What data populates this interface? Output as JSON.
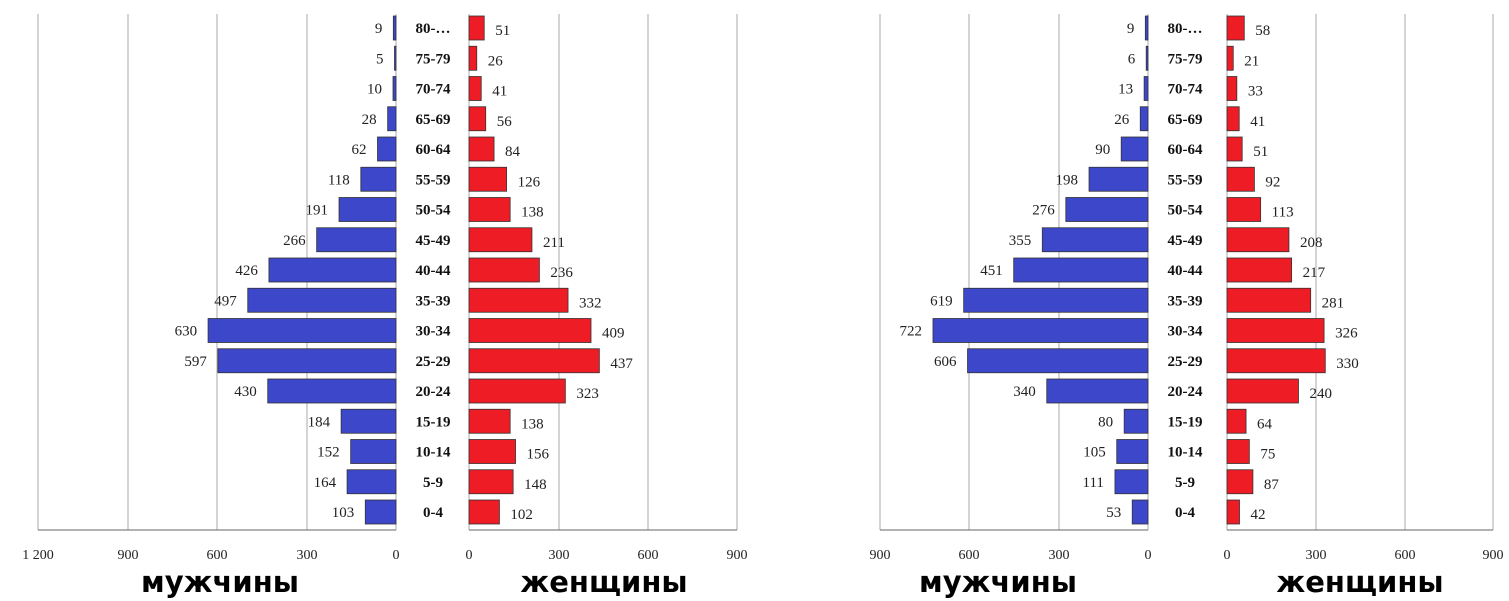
{
  "chart_data": [
    {
      "type": "bar",
      "categories": [
        "80-…",
        "75-79",
        "70-74",
        "65-69",
        "60-64",
        "55-59",
        "50-54",
        "45-49",
        "40-44",
        "35-39",
        "30-34",
        "25-29",
        "20-24",
        "15-19",
        "10-14",
        "5-9",
        "0-4"
      ],
      "series": [
        {
          "name": "мужчины",
          "values": [
            9,
            5,
            10,
            28,
            62,
            118,
            191,
            266,
            426,
            497,
            630,
            597,
            430,
            184,
            152,
            164,
            103
          ],
          "color": "#3d47c9"
        },
        {
          "name": "женщины",
          "values": [
            51,
            26,
            41,
            56,
            84,
            126,
            138,
            211,
            236,
            332,
            409,
            437,
            323,
            138,
            156,
            148,
            102
          ],
          "color": "#ee1c24"
        }
      ],
      "male_ticks": [
        "1 200",
        "900",
        "600",
        "300",
        "0"
      ],
      "female_ticks": [
        "0",
        "300",
        "600",
        "900"
      ],
      "male_xlim": [
        0,
        1200
      ],
      "female_xlim": [
        0,
        900
      ],
      "grid": true
    },
    {
      "type": "bar",
      "categories": [
        "80-…",
        "75-79",
        "70-74",
        "65-69",
        "60-64",
        "55-59",
        "50-54",
        "45-49",
        "40-44",
        "35-39",
        "30-34",
        "25-29",
        "20-24",
        "15-19",
        "10-14",
        "5-9",
        "0-4"
      ],
      "series": [
        {
          "name": "мужчины",
          "values": [
            9,
            6,
            13,
            26,
            90,
            198,
            276,
            355,
            451,
            619,
            722,
            606,
            340,
            80,
            105,
            111,
            53
          ],
          "color": "#3d47c9"
        },
        {
          "name": "женщины",
          "values": [
            58,
            21,
            33,
            41,
            51,
            92,
            113,
            208,
            217,
            281,
            326,
            330,
            240,
            64,
            75,
            87,
            42
          ],
          "color": "#ee1c24"
        }
      ],
      "male_ticks": [
        "900",
        "600",
        "300",
        "0"
      ],
      "female_ticks": [
        "0",
        "300",
        "600",
        "900"
      ],
      "male_xlim": [
        0,
        900
      ],
      "female_xlim": [
        0,
        900
      ],
      "grid": true
    }
  ]
}
